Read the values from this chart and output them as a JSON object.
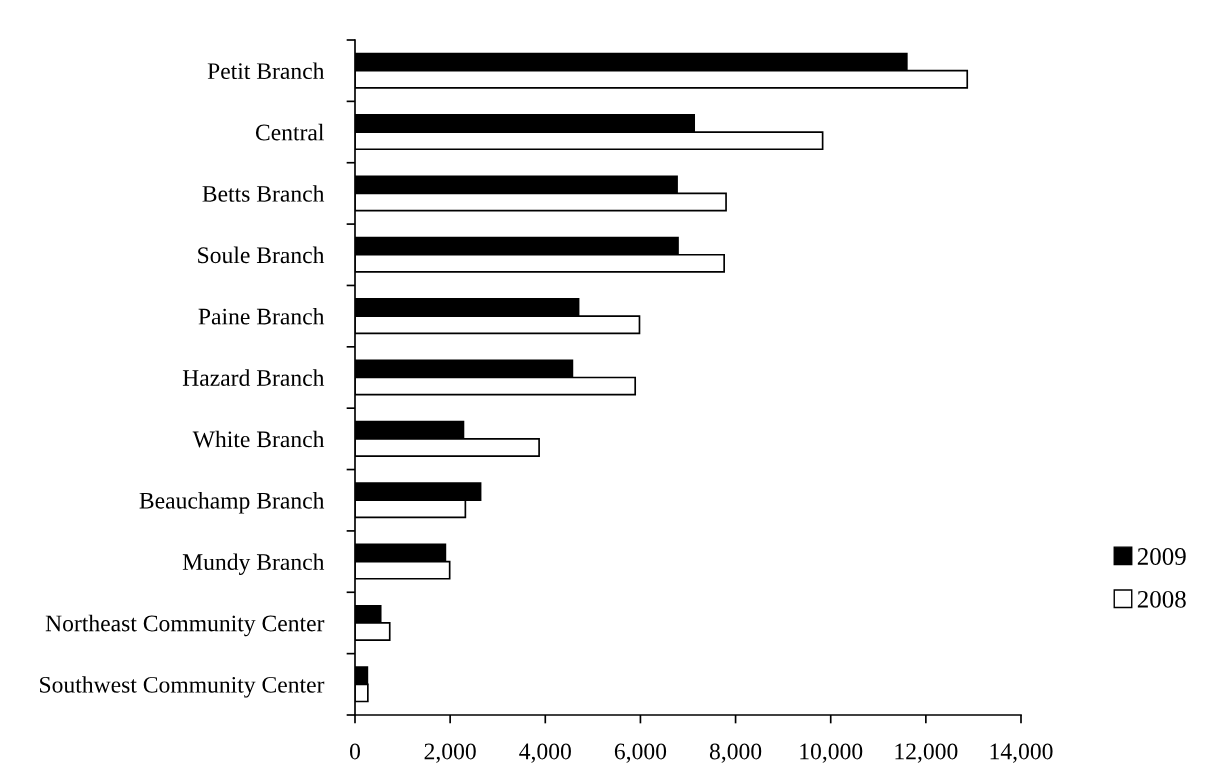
{
  "chart_data": {
    "type": "bar",
    "orientation": "horizontal",
    "categories": [
      "Petit Branch",
      "Central",
      "Betts Branch",
      "Soule Branch",
      "Paine Branch",
      "Hazard Branch",
      "White Branch",
      "Beauchamp Branch",
      "Mundy Branch",
      "Northeast Community Center",
      "Southwest Community Center"
    ],
    "series": [
      {
        "name": "2009",
        "color": "#000000",
        "values": [
          11600,
          7130,
          6770,
          6790,
          4700,
          4570,
          2280,
          2640,
          1900,
          540,
          260
        ]
      },
      {
        "name": "2008",
        "color": "#ffffff",
        "values": [
          12870,
          9830,
          7800,
          7760,
          5980,
          5890,
          3870,
          2320,
          1990,
          730,
          270
        ]
      }
    ],
    "xlim": [
      0,
      14000
    ],
    "xticks": [
      {
        "value": 0,
        "label": "0"
      },
      {
        "value": 2000,
        "label": "2,000"
      },
      {
        "value": 4000,
        "label": "4,000"
      },
      {
        "value": 6000,
        "label": "6,000"
      },
      {
        "value": 8000,
        "label": "8,000"
      },
      {
        "value": 10000,
        "label": "10,000"
      },
      {
        "value": 12000,
        "label": "12,000"
      },
      {
        "value": 14000,
        "label": "14,000"
      }
    ],
    "grid": false,
    "legend": "right"
  }
}
